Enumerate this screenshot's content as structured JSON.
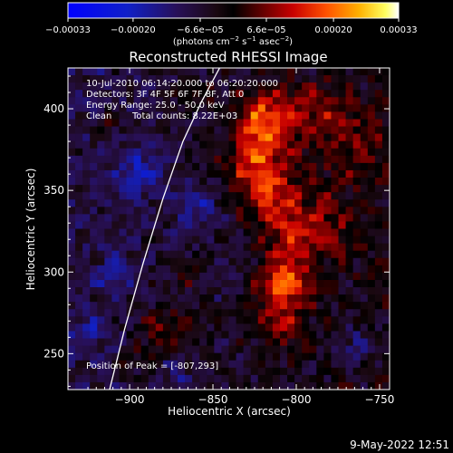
{
  "chart_data": {
    "type": "heatmap",
    "title": "Reconstructed RHESSI Image",
    "xlabel": "Heliocentric X (arcsec)",
    "ylabel": "Heliocentric Y (arcsec)",
    "xlim": [
      -937,
      -744
    ],
    "ylim": [
      228,
      425
    ],
    "x_ticks": [
      -900,
      -850,
      -800,
      -750
    ],
    "x_tick_labels": [
      "−900",
      "−850",
      "−800",
      "−750"
    ],
    "y_ticks": [
      250,
      300,
      350,
      400
    ],
    "y_tick_labels": [
      "250",
      "300",
      "350",
      "400"
    ],
    "colorbar": {
      "range": [
        -0.00033,
        0.00033
      ],
      "ticks": [
        -0.00033,
        -0.0002,
        -6.6e-05,
        6.6e-05,
        0.0002,
        0.00033
      ],
      "tick_labels": [
        "−0.00033",
        "−0.00020",
        "−6.6e−05",
        "6.6e−05",
        "0.00020",
        "0.00033"
      ],
      "unit_label": {
        "parts": [
          "(photons cm",
          "−2",
          " s",
          "−1",
          " asec",
          "−2",
          ")"
        ]
      }
    },
    "annotations": {
      "time_range": "10-Jul-2010 06:14:20.000 to 06:20:20.000",
      "detectors": "Detectors: 3F 4F 5F 6F 7F 8F, Att 0",
      "energy_range": "Energy Range: 25.0 - 50.0 keV",
      "algorithm": "Clean",
      "total_counts": "Total counts: 8.22E+03",
      "peak_position": "Position of Peak = [-807,293]"
    },
    "peak": [
      -807,
      293
    ],
    "limb_curve": [
      [
        -912,
        228
      ],
      [
        -903,
        265
      ],
      [
        -892,
        305
      ],
      [
        -880,
        345
      ],
      [
        -868,
        380
      ],
      [
        -857,
        404
      ],
      [
        -846,
        425
      ]
    ],
    "grid": false,
    "colormap": "blue-black-red-yellow-white"
  },
  "footer": {
    "date": "9-May-2022 12:51"
  }
}
